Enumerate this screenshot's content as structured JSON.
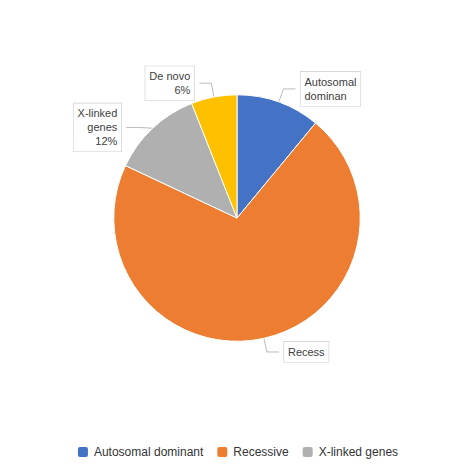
{
  "chart_data": {
    "type": "pie",
    "categories": [
      "Autosomal dominant",
      "Recessive",
      "X-linked genes",
      "De novo"
    ],
    "values": [
      11,
      71,
      12,
      6
    ],
    "colors": [
      "#4472C4",
      "#ED7D31",
      "#B0B0B0",
      "#FFC000"
    ],
    "annotations": [
      "Autosomal\ndominan",
      "Recess",
      "X-linked\ngenes\n12%",
      "De novo\n6%"
    ],
    "legend": "bottom",
    "legend_entries": [
      "Autosomal dominant",
      "Recessive",
      "X-linked genes"
    ]
  }
}
